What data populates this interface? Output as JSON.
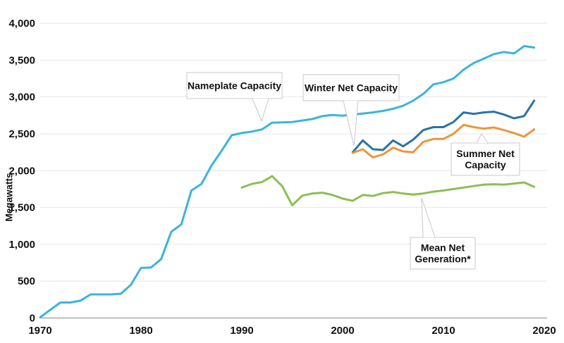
{
  "chart_data": {
    "type": "line",
    "title": "",
    "ylabel": "Megawatts",
    "grid": true,
    "legend_position": "inline-callouts",
    "xlim": [
      1970,
      2020
    ],
    "ylim": [
      0,
      4000
    ],
    "x_ticks": [
      {
        "value": 1970,
        "label": "1970"
      },
      {
        "value": 1980,
        "label": "1980"
      },
      {
        "value": 1990,
        "label": "1990"
      },
      {
        "value": 2000,
        "label": "2000"
      },
      {
        "value": 2010,
        "label": "2010"
      },
      {
        "value": 2020,
        "label": "2020"
      }
    ],
    "y_ticks": [
      {
        "value": 0,
        "label": "0"
      },
      {
        "value": 500,
        "label": "500"
      },
      {
        "value": 1000,
        "label": "1,000"
      },
      {
        "value": 1500,
        "label": "1,500"
      },
      {
        "value": 2000,
        "label": "2,000"
      },
      {
        "value": 2500,
        "label": "2,500"
      },
      {
        "value": 3000,
        "label": "3,000"
      },
      {
        "value": 3500,
        "label": "3,500"
      },
      {
        "value": 4000,
        "label": "4,000"
      }
    ],
    "series": [
      {
        "name": "Nameplate Capacity",
        "id": "nameplate",
        "color": "#3cb4da",
        "start_year": 1970,
        "x_step": 1,
        "values": [
          10,
          110,
          210,
          210,
          235,
          320,
          320,
          320,
          330,
          450,
          680,
          685,
          800,
          1170,
          1270,
          1730,
          1820,
          2070,
          2270,
          2480,
          2510,
          2530,
          2560,
          2650,
          2655,
          2660,
          2680,
          2700,
          2740,
          2755,
          2745,
          2760,
          2775,
          2790,
          2810,
          2840,
          2880,
          2950,
          3040,
          3170,
          3200,
          3250,
          3370,
          3460,
          3520,
          3580,
          3610,
          3590,
          3690,
          3670
        ]
      },
      {
        "name": "Winter Net Capacity",
        "id": "winter",
        "color": "#2a72a5",
        "start_year": 2001,
        "x_step": 1,
        "values": [
          2250,
          2410,
          2290,
          2280,
          2410,
          2330,
          2420,
          2550,
          2590,
          2590,
          2660,
          2790,
          2770,
          2790,
          2800,
          2760,
          2710,
          2740,
          2950
        ]
      },
      {
        "name": "Summer Net Capacity",
        "id": "summer",
        "color": "#e9963c",
        "start_year": 2001,
        "x_step": 1,
        "values": [
          2240,
          2290,
          2180,
          2220,
          2310,
          2260,
          2250,
          2390,
          2430,
          2430,
          2500,
          2620,
          2590,
          2570,
          2585,
          2550,
          2510,
          2460,
          2560
        ]
      },
      {
        "name": "Mean Net Generation*",
        "id": "mean",
        "color": "#8cbe55",
        "start_year": 1990,
        "x_step": 1,
        "values": [
          1770,
          1820,
          1845,
          1925,
          1790,
          1530,
          1660,
          1690,
          1700,
          1670,
          1620,
          1590,
          1670,
          1655,
          1695,
          1710,
          1690,
          1675,
          1690,
          1715,
          1730,
          1750,
          1770,
          1790,
          1810,
          1815,
          1810,
          1825,
          1840,
          1780
        ]
      }
    ],
    "annotations": [
      {
        "id": "nameplate",
        "lines": [
          "Nameplate Capacity"
        ]
      },
      {
        "id": "winter",
        "lines": [
          "Winter Net Capacity"
        ]
      },
      {
        "id": "summer",
        "lines": [
          "Summer Net",
          "Capacity"
        ]
      },
      {
        "id": "mean",
        "lines": [
          "Mean Net",
          "Generation*"
        ]
      }
    ]
  }
}
